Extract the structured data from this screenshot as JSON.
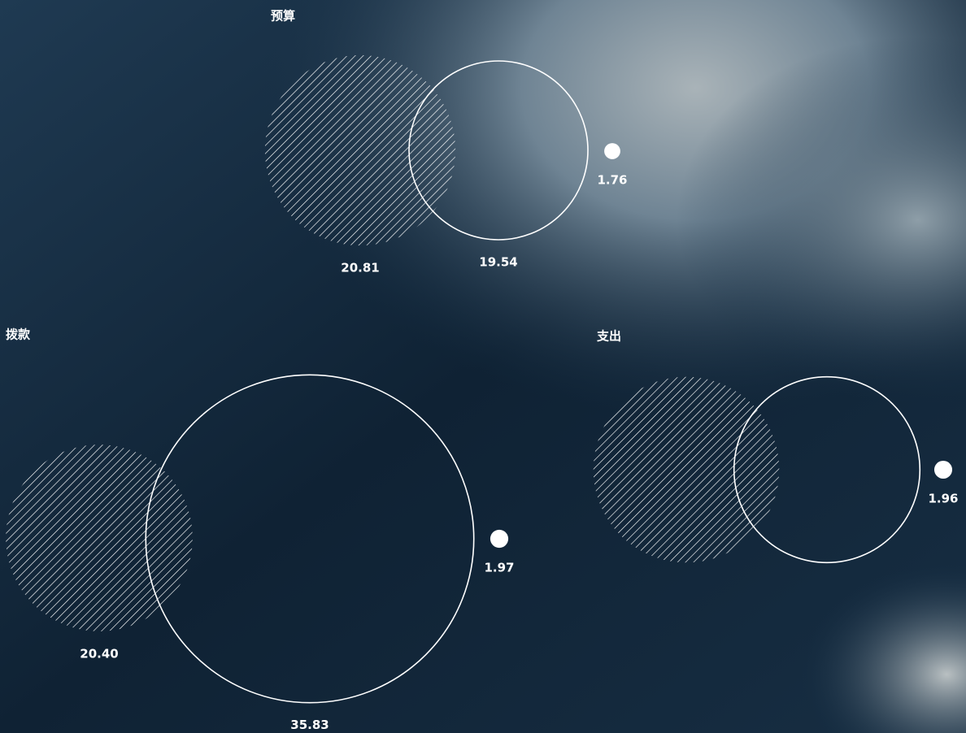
{
  "chart_data": [
    {
      "type": "bubble",
      "title": "预算",
      "values": [
        20.81,
        19.54,
        1.76
      ],
      "value_labels": [
        "20.81",
        "19.54",
        "1.76"
      ]
    },
    {
      "type": "bubble",
      "title": "拨款",
      "values": [
        20.4,
        35.83,
        1.97
      ],
      "value_labels": [
        "20.40",
        "35.83",
        "1.97"
      ]
    },
    {
      "type": "bubble",
      "title": "支出",
      "values": [
        20.3,
        20.3,
        1.96
      ],
      "value_labels": [
        null,
        null,
        "1.96"
      ]
    }
  ]
}
